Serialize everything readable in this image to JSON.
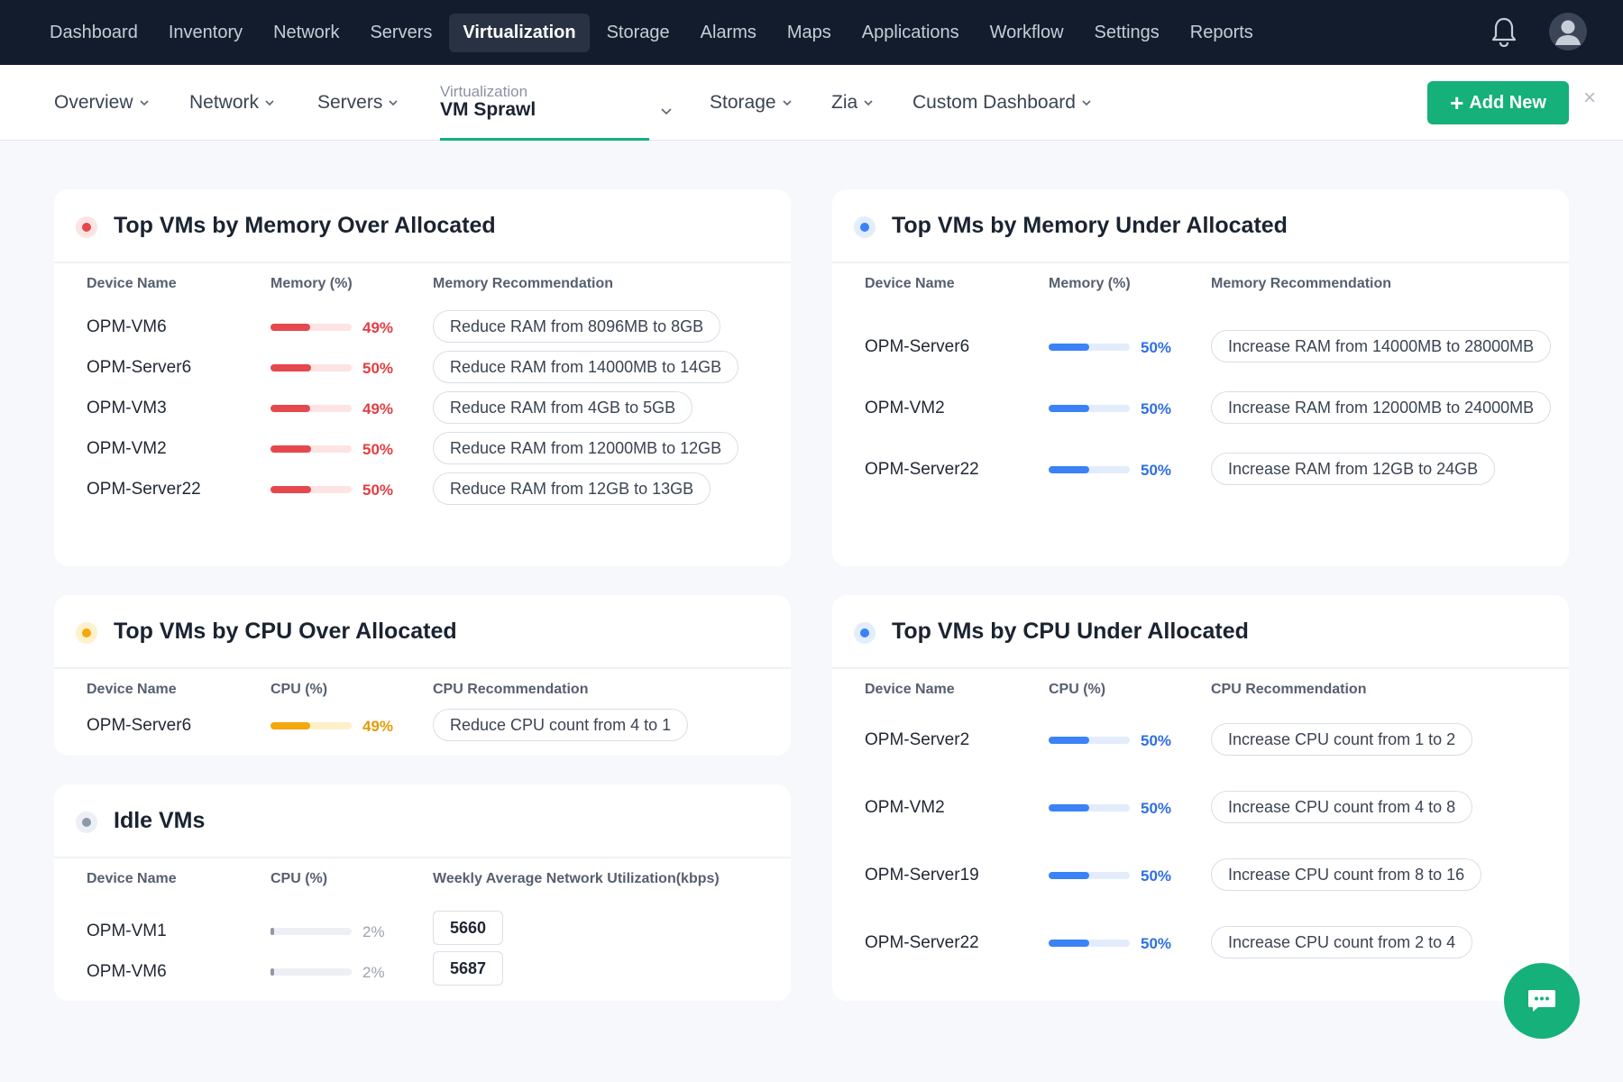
{
  "topnav": {
    "items": [
      "Dashboard",
      "Inventory",
      "Network",
      "Servers",
      "Virtualization",
      "Storage",
      "Alarms",
      "Maps",
      "Applications",
      "Workflow",
      "Settings",
      "Reports"
    ],
    "active_index": 4
  },
  "subnav": {
    "overview": "Overview",
    "network": "Network",
    "servers": "Servers",
    "active_small": "Virtualization",
    "active_big": "VM Sprawl",
    "storage": "Storage",
    "zia": "Zia",
    "custom": "Custom Dashboard",
    "add_new": "Add New"
  },
  "colors": {
    "accent": "#16b07a",
    "red": "#e5484d",
    "blue": "#3b82f6",
    "yellow": "#f5a70b",
    "gray": "#8e98a8"
  },
  "mem_over": {
    "title": "Top VMs by Memory Over Allocated",
    "col_device": "Device Name",
    "col_metric": "Memory (%)",
    "col_rec": "Memory Recommendation",
    "rows": [
      {
        "device": "OPM-VM6",
        "percent": 49,
        "label": "49%",
        "rec": "Reduce RAM from 8096MB to 8GB"
      },
      {
        "device": "OPM-Server6",
        "percent": 50,
        "label": "50%",
        "rec": "Reduce RAM from 14000MB to 14GB"
      },
      {
        "device": "OPM-VM3",
        "percent": 49,
        "label": "49%",
        "rec": "Reduce RAM from 4GB to 5GB"
      },
      {
        "device": "OPM-VM2",
        "percent": 50,
        "label": "50%",
        "rec": "Reduce RAM from 12000MB to 12GB"
      },
      {
        "device": "OPM-Server22",
        "percent": 50,
        "label": "50%",
        "rec": "Reduce RAM from 12GB to 13GB"
      }
    ]
  },
  "mem_under": {
    "title": "Top VMs by Memory Under Allocated",
    "col_device": "Device Name",
    "col_metric": "Memory (%)",
    "col_rec": "Memory Recommendation",
    "rows": [
      {
        "device": "OPM-Server6",
        "percent": 50,
        "label": "50%",
        "rec": "Increase RAM from 14000MB to 28000MB"
      },
      {
        "device": "OPM-VM2",
        "percent": 50,
        "label": "50%",
        "rec": "Increase RAM from 12000MB to 24000MB"
      },
      {
        "device": "OPM-Server22",
        "percent": 50,
        "label": "50%",
        "rec": "Increase RAM from 12GB to 24GB"
      }
    ]
  },
  "cpu_over": {
    "title": "Top VMs by CPU Over Allocated",
    "col_device": "Device Name",
    "col_metric": "CPU (%)",
    "col_rec": "CPU Recommendation",
    "rows": [
      {
        "device": "OPM-Server6",
        "percent": 49,
        "label": "49%",
        "rec": "Reduce CPU count from 4 to 1"
      }
    ]
  },
  "idle": {
    "title": "Idle VMs",
    "col_device": "Device Name",
    "col_metric": "CPU (%)",
    "col_rec": "Weekly Average Network Utilization(kbps)",
    "rows": [
      {
        "device": "OPM-VM1",
        "percent": 2,
        "label": "2%",
        "value": "5660"
      },
      {
        "device": "OPM-VM6",
        "percent": 2,
        "label": "2%",
        "value": "5687"
      }
    ]
  },
  "cpu_under": {
    "title": "Top VMs by CPU Under Allocated",
    "col_device": "Device Name",
    "col_metric": "CPU (%)",
    "col_rec": "CPU Recommendation",
    "rows": [
      {
        "device": "OPM-Server2",
        "percent": 50,
        "label": "50%",
        "rec": "Increase CPU count from 1 to 2"
      },
      {
        "device": "OPM-VM2",
        "percent": 50,
        "label": "50%",
        "rec": "Increase CPU count from 4 to 8"
      },
      {
        "device": "OPM-Server19",
        "percent": 50,
        "label": "50%",
        "rec": "Increase CPU count from 8 to 16"
      },
      {
        "device": "OPM-Server22",
        "percent": 50,
        "label": "50%",
        "rec": "Increase CPU count from 2 to 4"
      }
    ]
  }
}
